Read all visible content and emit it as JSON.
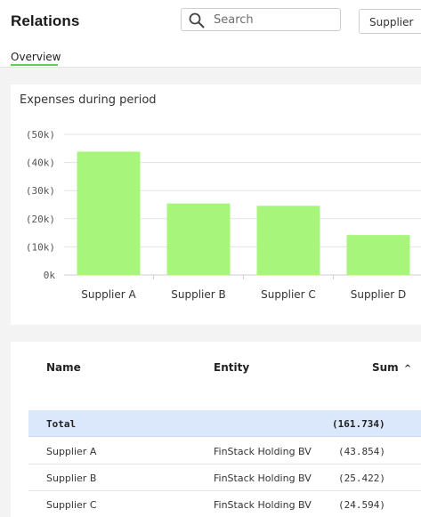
{
  "header": {
    "title": "Relations",
    "search_placeholder": "Search",
    "filter_value": "Supplier",
    "tabs": [
      {
        "label": "Overview",
        "active": true
      }
    ]
  },
  "chart_card": {
    "title": "Expenses during period"
  },
  "chart_data": {
    "type": "bar",
    "title": "Expenses during period",
    "categories": [
      "Supplier A",
      "Supplier B",
      "Supplier C",
      "Supplier D"
    ],
    "values": [
      43854,
      25422,
      24594,
      14200
    ],
    "ylim": [
      0,
      50000
    ],
    "yticks": [
      0,
      10000,
      20000,
      30000,
      40000,
      50000
    ],
    "ytick_labels": [
      "0k",
      "(10k)",
      "(20k)",
      "(30k)",
      "(40k)",
      "(50k)"
    ],
    "bar_color": "#a8f57c",
    "grid": true
  },
  "table": {
    "columns": [
      "Name",
      "Entity",
      "Sum"
    ],
    "sort_indicator": "^",
    "total": {
      "label": "Total",
      "sum": "(161.734)"
    },
    "rows": [
      {
        "name": "Supplier A",
        "entity": "FinStack Holding BV",
        "sum": "(43.854)"
      },
      {
        "name": "Supplier B",
        "entity": "FinStack Holding BV",
        "sum": "(25.422)"
      },
      {
        "name": "Supplier C",
        "entity": "FinStack Holding BV",
        "sum": "(24.594)"
      }
    ]
  },
  "colors": {
    "accent": "#5ed05a",
    "bar": "#a8f57c",
    "total_row": "#dbe8fb"
  }
}
